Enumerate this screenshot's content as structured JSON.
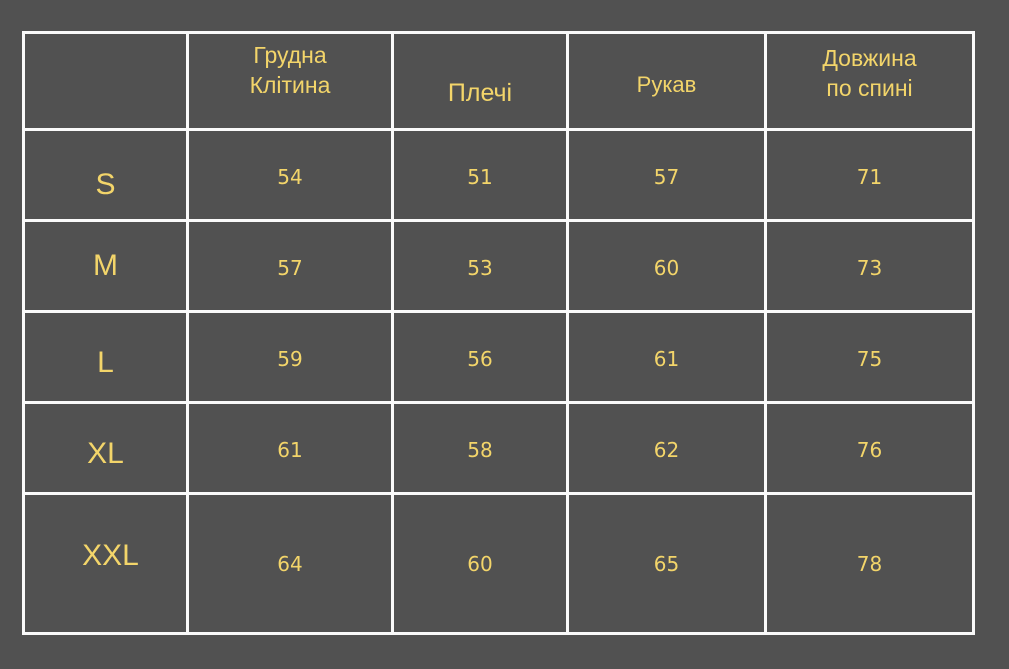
{
  "table": {
    "headers": [
      "",
      "Грудна\nКлітина",
      "Плечі",
      "Рукав",
      "Довжина\nпо спині"
    ],
    "rows": [
      {
        "size": "S",
        "values": [
          "54",
          "51",
          "57",
          "71"
        ]
      },
      {
        "size": "M",
        "values": [
          "57",
          "53",
          "60",
          "73"
        ]
      },
      {
        "size": "L",
        "values": [
          "59",
          "56",
          "61",
          "75"
        ]
      },
      {
        "size": "XL",
        "values": [
          "61",
          "58",
          "62",
          "76"
        ]
      },
      {
        "size": "XXL",
        "values": [
          "64",
          "60",
          "65",
          "78"
        ]
      }
    ]
  },
  "colors": {
    "background": "#515151",
    "text": "#f3d56a",
    "border": "#fafafa"
  }
}
